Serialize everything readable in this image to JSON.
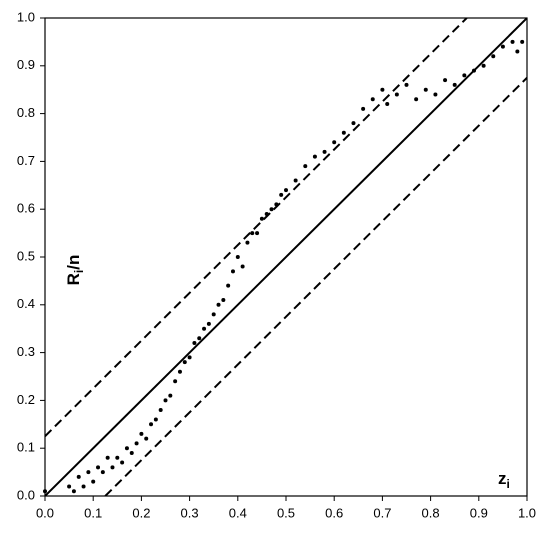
{
  "chart_data": {
    "type": "scatter",
    "x_label": [
      "z",
      "i"
    ],
    "y_label": [
      "R",
      "i",
      "/n"
    ],
    "xlim": [
      0,
      1
    ],
    "ylim": [
      0,
      1
    ],
    "xticks": [
      {
        "value": 0,
        "label": "0.0"
      },
      0.1,
      0.2,
      0.3,
      0.4,
      0.5,
      0.6,
      0.7,
      0.8,
      0.9,
      {
        "value": 1,
        "label": "1.0"
      }
    ],
    "yticks": [
      {
        "value": 0,
        "label": "0.0"
      },
      0.1,
      0.2,
      0.3,
      0.4,
      0.5,
      0.6,
      0.7,
      0.8,
      0.9,
      {
        "value": 1,
        "label": "1.0"
      }
    ],
    "grid": false,
    "color": "#000000",
    "x": [
      0.0,
      0.05,
      0.06,
      0.07,
      0.08,
      0.09,
      0.1,
      0.11,
      0.12,
      0.13,
      0.14,
      0.15,
      0.16,
      0.17,
      0.18,
      0.19,
      0.2,
      0.21,
      0.22,
      0.23,
      0.24,
      0.25,
      0.26,
      0.27,
      0.28,
      0.29,
      0.3,
      0.31,
      0.32,
      0.33,
      0.34,
      0.35,
      0.36,
      0.37,
      0.38,
      0.39,
      0.4,
      0.41,
      0.42,
      0.43,
      0.44,
      0.45,
      0.46,
      0.47,
      0.48,
      0.49,
      0.5,
      0.52,
      0.54,
      0.56,
      0.58,
      0.6,
      0.62,
      0.64,
      0.66,
      0.68,
      0.7,
      0.71,
      0.73,
      0.75,
      0.77,
      0.79,
      0.81,
      0.83,
      0.85,
      0.87,
      0.89,
      0.91,
      0.93,
      0.95,
      0.97,
      0.98,
      0.99
    ],
    "values": [
      0.01,
      0.02,
      0.01,
      0.04,
      0.02,
      0.05,
      0.03,
      0.06,
      0.05,
      0.08,
      0.06,
      0.08,
      0.07,
      0.1,
      0.09,
      0.11,
      0.13,
      0.12,
      0.15,
      0.16,
      0.18,
      0.2,
      0.21,
      0.24,
      0.26,
      0.28,
      0.29,
      0.32,
      0.33,
      0.35,
      0.36,
      0.38,
      0.4,
      0.41,
      0.44,
      0.47,
      0.5,
      0.48,
      0.53,
      0.55,
      0.55,
      0.58,
      0.59,
      0.6,
      0.61,
      0.63,
      0.64,
      0.66,
      0.69,
      0.71,
      0.72,
      0.74,
      0.76,
      0.78,
      0.81,
      0.83,
      0.85,
      0.82,
      0.84,
      0.86,
      0.83,
      0.85,
      0.84,
      0.87,
      0.86,
      0.88,
      0.89,
      0.9,
      0.92,
      0.94,
      0.95,
      0.93,
      0.95
    ],
    "reference_lines": [
      {
        "x": [
          0,
          1
        ],
        "y": [
          0,
          1
        ],
        "dashed": false
      },
      {
        "x": [
          0,
          0.875
        ],
        "y": [
          0.125,
          1
        ],
        "dashed": true
      },
      {
        "x": [
          0.125,
          1
        ],
        "y": [
          0,
          0.875
        ],
        "dashed": true
      }
    ]
  }
}
